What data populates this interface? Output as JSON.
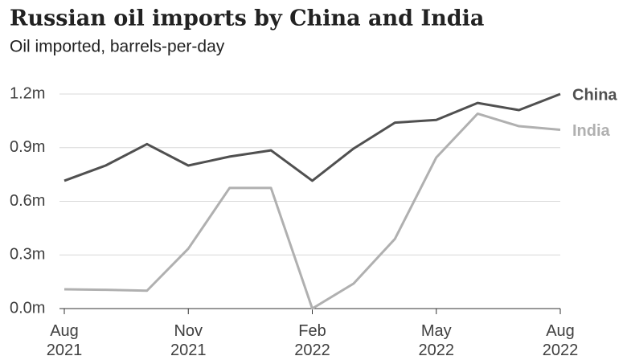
{
  "chart_data": {
    "type": "line",
    "title": "Russian oil imports by China and India",
    "subtitle": "Oil imported, barrels-per-day",
    "categories": [
      "Aug 2021",
      null,
      null,
      "Nov 2021",
      null,
      null,
      "Feb 2022",
      null,
      null,
      "May 2022",
      null,
      null,
      "Aug 2022"
    ],
    "series": [
      {
        "name": "China",
        "color": "#505050",
        "values": [
          0.715,
          0.8,
          0.92,
          0.8,
          0.85,
          0.885,
          0.715,
          0.895,
          1.04,
          1.055,
          1.15,
          1.11,
          1.2
        ]
      },
      {
        "name": "India",
        "color": "#b0b0b0",
        "values": [
          0.108,
          0.105,
          0.1,
          0.335,
          0.675,
          0.675,
          0,
          0.14,
          0.39,
          0.845,
          1.09,
          1.02,
          1.0
        ]
      }
    ],
    "ylim": [
      0,
      1.2
    ],
    "yticks": [
      {
        "value": 0,
        "label": "0.0m"
      },
      {
        "value": 0.3,
        "label": "0.3m"
      },
      {
        "value": 0.6,
        "label": "0.6m"
      },
      {
        "value": 0.9,
        "label": "0.9m"
      },
      {
        "value": 1.2,
        "label": "1.2m"
      }
    ],
    "grid": true
  }
}
